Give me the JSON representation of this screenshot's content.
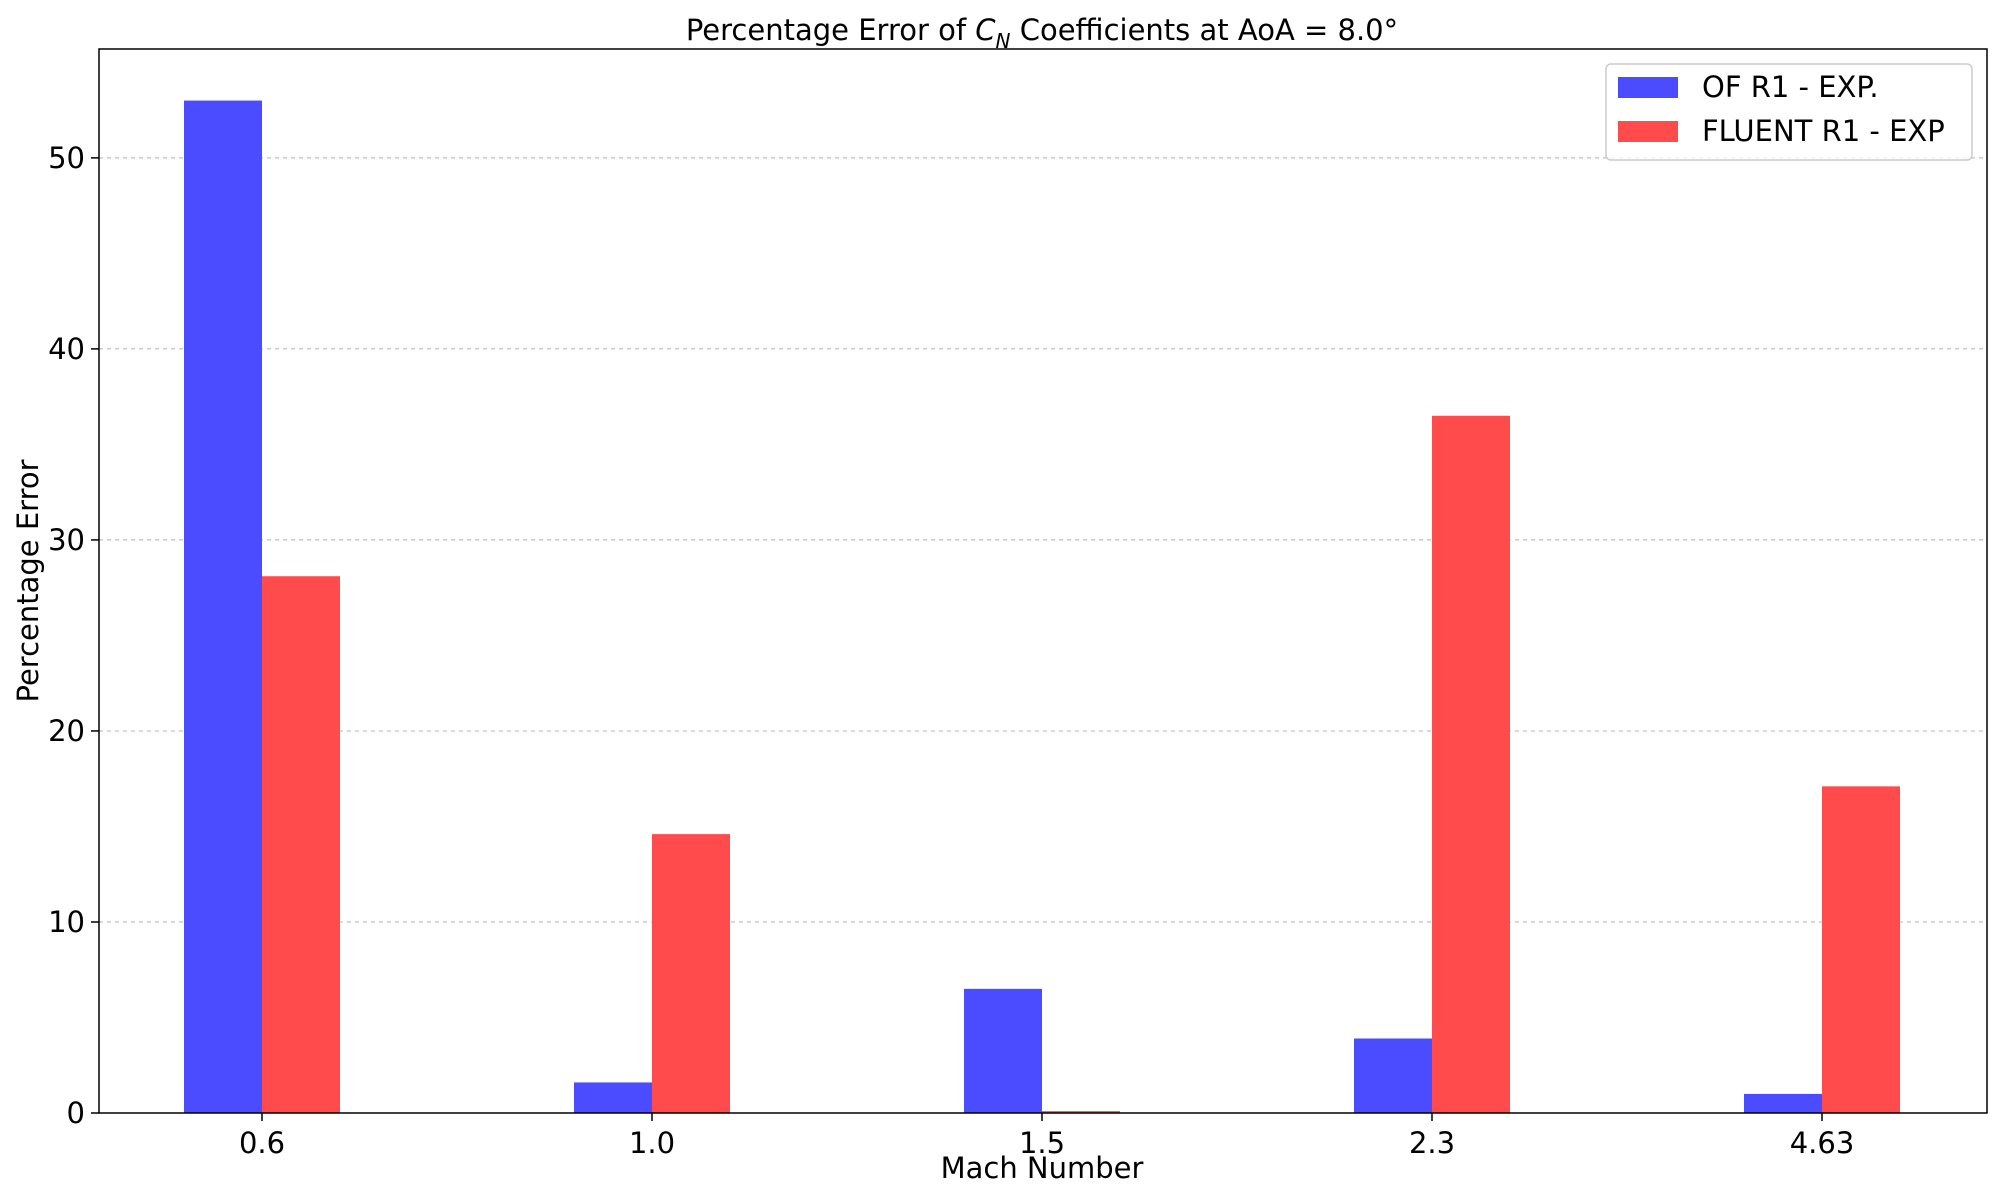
{
  "chart_data": {
    "type": "bar",
    "title_prefix": "Percentage Error of ",
    "title_symbol": "C",
    "title_subscript": "N",
    "title_suffix": " Coefficients at AoA = 8.0°",
    "xlabel": "Mach Number",
    "ylabel": "Percentage Error",
    "categories": [
      "0.6",
      "1.0",
      "1.5",
      "2.3",
      "4.63"
    ],
    "ylim": [
      0,
      55.7
    ],
    "yticks": [
      0,
      10,
      20,
      30,
      40,
      50
    ],
    "grid": "y-dashed",
    "legend_position": "top-right",
    "series": [
      {
        "name": "OF R1 - EXP.",
        "color": "#4b4bff",
        "values": [
          53.0,
          1.6,
          6.5,
          3.9,
          1.0
        ]
      },
      {
        "name": "FLUENT R1 - EXP",
        "color": "#ff4b4b",
        "values": [
          28.1,
          14.6,
          0.1,
          36.5,
          17.1
        ]
      }
    ]
  }
}
